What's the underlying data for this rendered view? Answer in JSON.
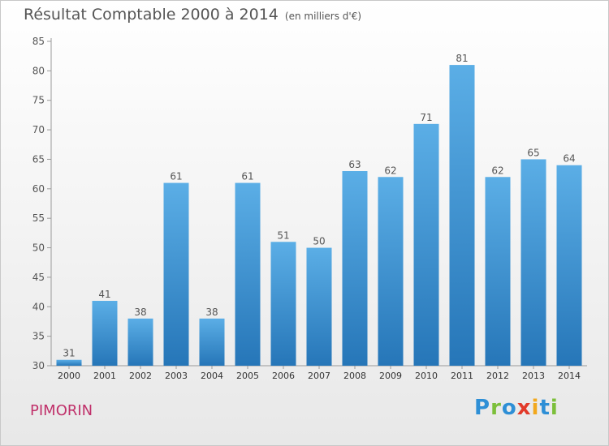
{
  "header": {
    "title": "Résultat Comptable 2000 à 2014",
    "subtitle": "(en milliers d'€)"
  },
  "footer": {
    "commune": "PIMORIN",
    "logo_letters": [
      {
        "char": "P",
        "color": "#2e8fd6"
      },
      {
        "char": "r",
        "color": "#7cbf3a"
      },
      {
        "char": "o",
        "color": "#2e8fd6"
      },
      {
        "char": "x",
        "color": "#e23a2a"
      },
      {
        "char": "i",
        "color": "#f2a81d"
      },
      {
        "char": "t",
        "color": "#2e8fd6"
      },
      {
        "char": "i",
        "color": "#7cbf3a"
      }
    ]
  },
  "chart_data": {
    "type": "bar",
    "categories": [
      "2000",
      "2001",
      "2002",
      "2003",
      "2004",
      "2005",
      "2006",
      "2007",
      "2008",
      "2009",
      "2010",
      "2011",
      "2012",
      "2013",
      "2014"
    ],
    "values": [
      31,
      41,
      38,
      61,
      38,
      61,
      51,
      50,
      63,
      62,
      71,
      81,
      62,
      65,
      64
    ],
    "ylim": [
      30,
      85
    ],
    "yticks": [
      30,
      35,
      40,
      45,
      50,
      55,
      60,
      65,
      70,
      75,
      80,
      85
    ],
    "grid": false,
    "bar_color_top": "#5baee6",
    "bar_color_bottom": "#2676b8",
    "label_color": "#555555"
  }
}
